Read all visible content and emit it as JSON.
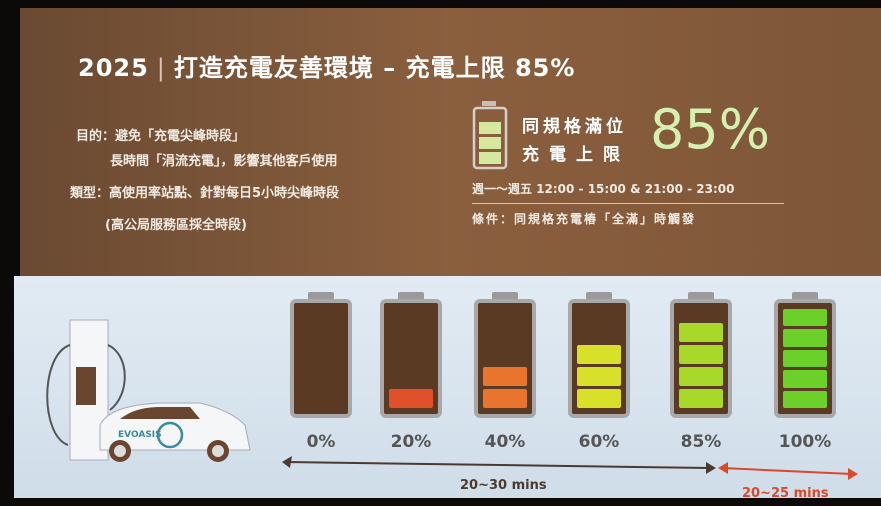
{
  "title": {
    "year": "2025",
    "separator": "|",
    "text": "打造充電友善環境 – 充電上限 85%"
  },
  "purpose": {
    "label": "目的：",
    "line1": "避免「充電尖峰時段」",
    "line2": "長時間「涓流充電」，影響其他客戶使用"
  },
  "type": {
    "label": "類型：",
    "line1": "高使用率站點、針對每日5小時尖峰時段",
    "line2": "(高公局服務區採全時段)"
  },
  "limit": {
    "line1": "同規格滿位",
    "line2": "充電上限",
    "value": "85%",
    "schedule": "週一～週五  12:00 - 15:00 & 21:00 - 23:00",
    "condition": "條件：同規格充電樁「全滿」時觸發"
  },
  "car": {
    "brand": "EVOASIS"
  },
  "batteries": [
    {
      "label": "0%",
      "segments": 0,
      "color": "#000000"
    },
    {
      "label": "20%",
      "segments": 1,
      "color": "#e0502a"
    },
    {
      "label": "40%",
      "segments": 2,
      "color": "#e8742e"
    },
    {
      "label": "60%",
      "segments": 3,
      "color": "#d8e02a"
    },
    {
      "label": "85%",
      "segments": 4,
      "color": "#a8d82a"
    },
    {
      "label": "100%",
      "segments": 5,
      "color": "#6cd02a"
    }
  ],
  "arrows": {
    "first": "20~30 mins",
    "second": "20~25 mins",
    "first_color": "#4a3a30",
    "second_color": "#d9492c"
  }
}
